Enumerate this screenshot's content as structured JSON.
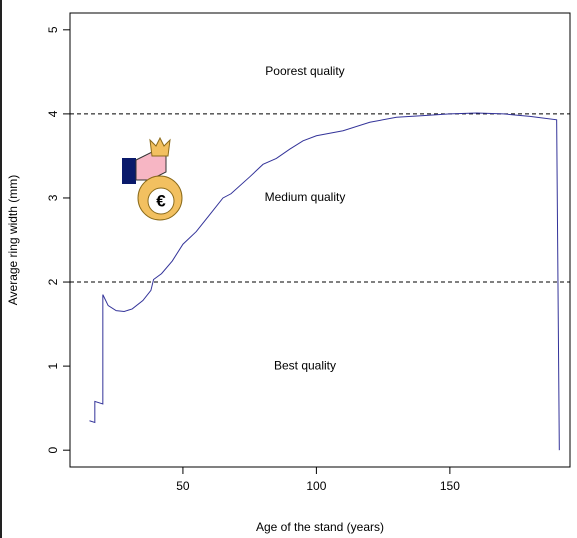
{
  "chart_data": {
    "type": "line",
    "x_label": "Age of the stand (years)",
    "y_label": "Average ring width (mm)",
    "x": [
      15,
      17,
      17,
      20,
      20,
      22,
      25,
      28,
      31,
      35,
      38,
      39,
      42,
      46,
      50,
      55,
      60,
      65,
      68,
      75,
      80,
      85,
      90,
      95,
      100,
      110,
      120,
      130,
      140,
      150,
      160,
      170,
      180,
      190,
      191
    ],
    "series": [
      {
        "color": "#333399",
        "values": [
          0.35,
          0.33,
          0.58,
          0.55,
          1.85,
          1.72,
          1.66,
          1.65,
          1.68,
          1.78,
          1.9,
          2.03,
          2.1,
          2.25,
          2.45,
          2.6,
          2.8,
          3.0,
          3.05,
          3.25,
          3.4,
          3.47,
          3.58,
          3.68,
          3.74,
          3.8,
          3.9,
          3.96,
          3.98,
          4.0,
          4.01,
          4.0,
          3.97,
          3.93,
          0
        ]
      }
    ],
    "xlim": [
      7.7,
      195
    ],
    "ylim": [
      -0.2,
      5.2
    ],
    "xticks": [
      50,
      100,
      150
    ],
    "yticks": [
      0,
      1,
      2,
      3,
      4,
      5
    ],
    "hlines": [
      2,
      4
    ],
    "zone_labels": [
      "Best quality",
      "Medium quality",
      "Poorest quality"
    ]
  }
}
